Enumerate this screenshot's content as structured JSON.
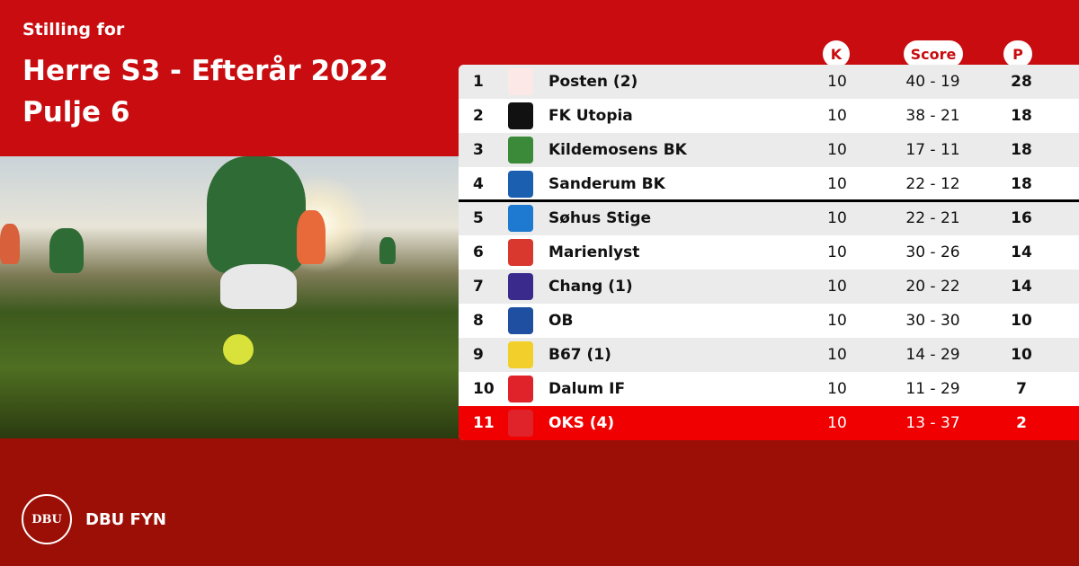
{
  "header": {
    "subtitle": "Stilling for",
    "title_line1": "Herre S3 - Efterår 2022",
    "title_line2": "Pulje 6"
  },
  "table": {
    "columns": {
      "k": "K",
      "score": "Score",
      "p": "P"
    },
    "rows": [
      {
        "rank": "1",
        "team": "Posten (2)",
        "k": "10",
        "score": "40 - 19",
        "p": "28",
        "logo_color": "#fde8e8"
      },
      {
        "rank": "2",
        "team": "FK Utopia",
        "k": "10",
        "score": "38 - 21",
        "p": "18",
        "logo_color": "#111111"
      },
      {
        "rank": "3",
        "team": "Kildemosens BK",
        "k": "10",
        "score": "17 - 11",
        "p": "18",
        "logo_color": "#3a8a3a"
      },
      {
        "rank": "4",
        "team": "Sanderum BK",
        "k": "10",
        "score": "22 - 12",
        "p": "18",
        "logo_color": "#1b5fb0"
      },
      {
        "rank": "5",
        "team": "Søhus Stige",
        "k": "10",
        "score": "22 - 21",
        "p": "16",
        "logo_color": "#1e7ad0"
      },
      {
        "rank": "6",
        "team": "Marienlyst",
        "k": "10",
        "score": "30 - 26",
        "p": "14",
        "logo_color": "#d8382e"
      },
      {
        "rank": "7",
        "team": "Chang (1)",
        "k": "10",
        "score": "20 - 22",
        "p": "14",
        "logo_color": "#3a2a8c"
      },
      {
        "rank": "8",
        "team": "OB",
        "k": "10",
        "score": "30 - 30",
        "p": "10",
        "logo_color": "#1e4fa0"
      },
      {
        "rank": "9",
        "team": "B67 (1)",
        "k": "10",
        "score": "14 - 29",
        "p": "10",
        "logo_color": "#f2cf2a"
      },
      {
        "rank": "10",
        "team": "Dalum IF",
        "k": "10",
        "score": "11 - 29",
        "p": "7",
        "logo_color": "#e0222a"
      },
      {
        "rank": "11",
        "team": "OKS (4)",
        "k": "10",
        "score": "13 - 37",
        "p": "2",
        "logo_color": "#e0222a"
      }
    ]
  },
  "footer": {
    "org": "DBU FYN",
    "logo_text": "DBU"
  },
  "colors": {
    "top_red": "#c80c0f",
    "bottom_red": "#9b0f06",
    "highlight": "#f00000"
  }
}
